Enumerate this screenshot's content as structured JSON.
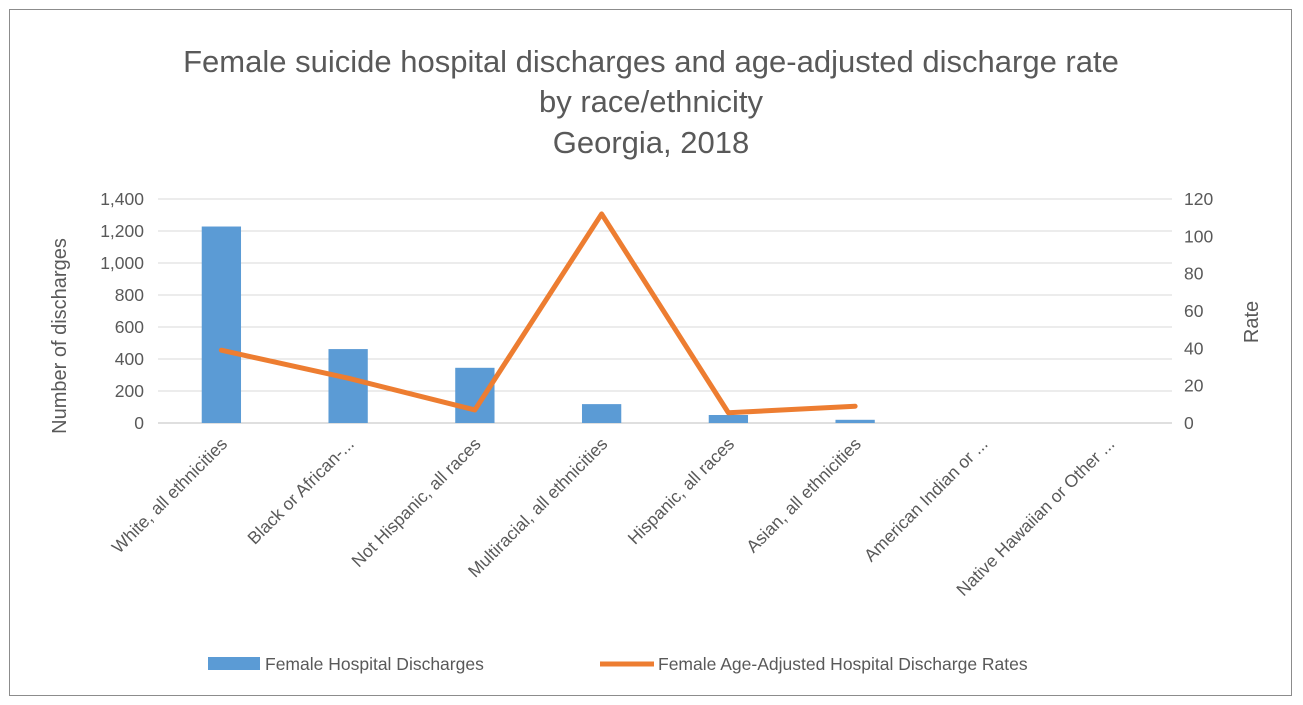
{
  "chart_data": {
    "type": "bar",
    "title_lines": [
      "Female suicide hospital discharges and age-adjusted discharge rate",
      "by race/ethnicity",
      "Georgia, 2018"
    ],
    "categories": [
      "White, all ethnicities",
      "Black or African-...",
      "Not Hispanic, all races",
      "Multiracial, all ethnicities",
      "Hispanic, all races",
      "Asian, all ethnicities",
      "American Indian or ...",
      "Native Hawaiian or Other ..."
    ],
    "series": [
      {
        "name": "Female Hospital Discharges",
        "type": "bar",
        "axis": "left",
        "color": "#5b9bd5",
        "values": [
          1228,
          462,
          345,
          118,
          50,
          20,
          0,
          0
        ]
      },
      {
        "name": "Female Age-Adjusted Hospital Discharge Rates",
        "type": "line",
        "axis": "right",
        "color": "#ed7d31",
        "values": [
          39,
          24,
          7,
          112,
          5.5,
          9,
          null,
          null
        ]
      }
    ],
    "ylabel": "Number of discharges",
    "y2label": "Rate",
    "ylim": [
      0,
      1400
    ],
    "y2lim": [
      0,
      120
    ],
    "yticks": [
      0,
      200,
      400,
      600,
      800,
      1000,
      1200,
      1400
    ],
    "yticks_labels": [
      "0",
      "200",
      "400",
      "600",
      "800",
      "1,000",
      "1,200",
      "1,400"
    ],
    "y2ticks": [
      0,
      20,
      40,
      60,
      80,
      100,
      120
    ],
    "y2ticks_labels": [
      "0",
      "20",
      "40",
      "60",
      "80",
      "100",
      "120"
    ],
    "grid": true,
    "legend_position": "bottom"
  }
}
